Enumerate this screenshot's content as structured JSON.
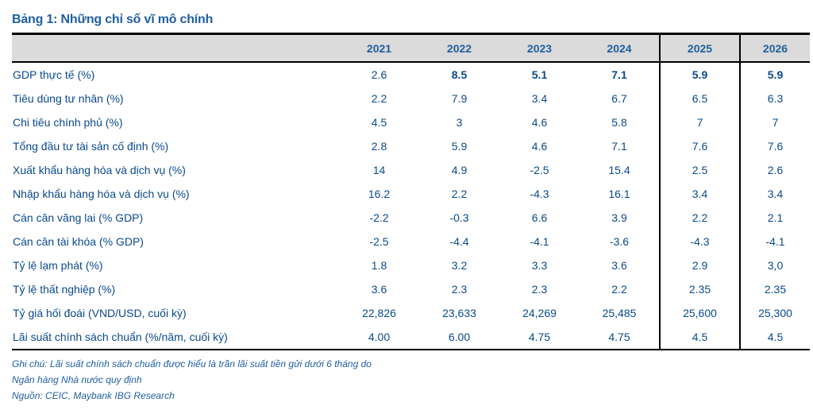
{
  "title": "Bảng 1: Những chỉ số vĩ mô chính",
  "years": [
    "2021",
    "2022",
    "2023",
    "2024",
    "2025",
    "2026"
  ],
  "rows": [
    {
      "label": "GDP thực tế (%)",
      "values": [
        "2.6",
        "8.5",
        "5.1",
        "7.1",
        "5.9",
        "5.9"
      ]
    },
    {
      "label": "Tiêu dùng tư nhân (%)",
      "values": [
        "2.2",
        "7.9",
        "3.4",
        "6.7",
        "6.5",
        "6.3"
      ]
    },
    {
      "label": "Chi tiêu chính phủ (%)",
      "values": [
        "4.5",
        "3",
        "4.6",
        "5.8",
        "7",
        "7"
      ]
    },
    {
      "label": "Tổng đầu tư tài sản cố định (%)",
      "values": [
        "2.8",
        "5.9",
        "4.6",
        "7.1",
        "7.6",
        "7.6"
      ]
    },
    {
      "label": "Xuất khẩu hàng hóa và dịch vụ (%)",
      "values": [
        "14",
        "4.9",
        "-2.5",
        "15.4",
        "2.5",
        "2.6"
      ]
    },
    {
      "label": "Nhập khẩu hàng hóa và dịch vụ (%)",
      "values": [
        "16.2",
        "2.2",
        "-4.3",
        "16.1",
        "3.4",
        "3.4"
      ]
    },
    {
      "label": "Cán cân vãng lai (% GDP)",
      "values": [
        "-2.2",
        "-0.3",
        "6.6",
        "3.9",
        "2.2",
        "2.1"
      ]
    },
    {
      "label": "Cán cân tài khóa (% GDP)",
      "values": [
        "-2.5",
        "-4.4",
        "-4.1",
        "-3.6",
        "-4.3",
        "-4.1"
      ]
    },
    {
      "label": "Tỷ lệ lạm phát (%)",
      "values": [
        "1.8",
        "3.2",
        "3.3",
        "3.6",
        "2.9",
        "3,0"
      ]
    },
    {
      "label": "Tỷ lệ thất nghiệp (%)",
      "values": [
        "3.6",
        "2.3",
        "2.3",
        "2.2",
        "2.35",
        "2.35"
      ]
    },
    {
      "label": "Tỷ giá hối đoái (VND/USD, cuối kỳ)",
      "values": [
        "22,826",
        "23,633",
        "24,269",
        "25,485",
        "25,600",
        "25,300"
      ]
    },
    {
      "label": "Lãi suất chính sách chuẩn (%/năm, cuối kỳ)",
      "values": [
        "4.00",
        "6.00",
        "4.75",
        "4.75",
        "4.5",
        "4.5"
      ]
    }
  ],
  "notes": {
    "line1": "Ghi chú: Lãi suất chính sách chuẩn được hiểu là trần lãi suất tiền gửi dưới 6 tháng do",
    "line2": "Ngân hàng Nhà nước quy định",
    "line3": "Nguồn: CEIC, Maybank IBG Research"
  },
  "colors": {
    "text": "#0a4a8a",
    "title": "#1f5f9f",
    "header_bg": "#dbdbdb"
  }
}
